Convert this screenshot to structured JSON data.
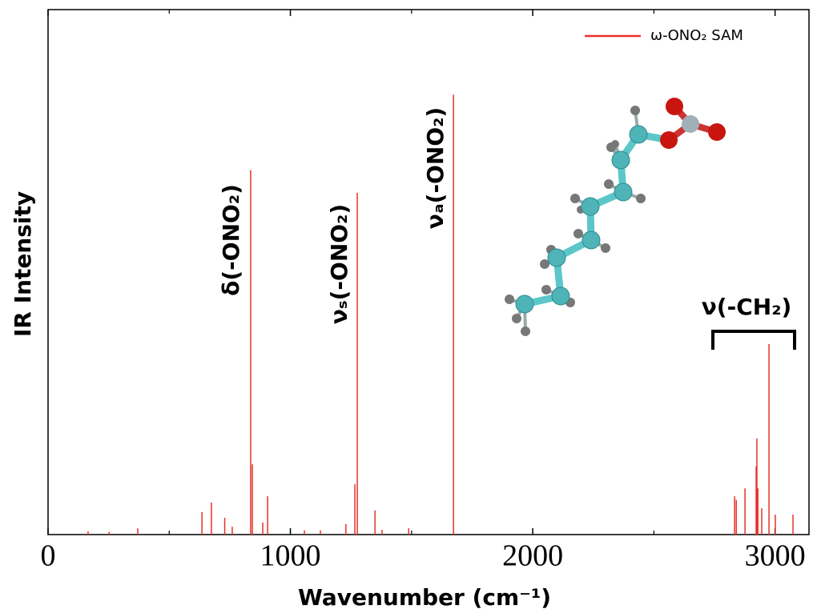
{
  "chart_data": {
    "type": "stick",
    "xlabel": "Wavenumber (cm⁻¹)",
    "ylabel": "IR Intensity",
    "xlim": [
      0,
      3140
    ],
    "ylim": [
      0,
      100
    ],
    "xticks": [
      0,
      1000,
      2000,
      3000
    ],
    "minor_xticks": [
      500,
      1500,
      2500
    ],
    "legend_position": "upper right",
    "series": [
      {
        "name": "ω-ONO₂ SAM",
        "color": "#e8302a",
        "x": [
          165,
          252,
          370,
          635,
          674,
          729,
          760,
          836,
          843,
          886,
          906,
          1058,
          1124,
          1229,
          1266,
          1276,
          1349,
          1378,
          1488,
          1673,
          2833,
          2840,
          2876,
          2922,
          2925,
          2929,
          2945,
          2975,
          3001,
          3074
        ],
        "values": [
          0.6,
          0.5,
          1.2,
          4.3,
          6.1,
          3.2,
          1.5,
          69.4,
          13.4,
          2.3,
          7.3,
          0.8,
          0.8,
          2.0,
          9.6,
          65.1,
          4.6,
          0.9,
          1.2,
          83.8,
          7.3,
          6.6,
          8.8,
          13.0,
          18.3,
          8.8,
          5.0,
          36.3,
          3.8,
          3.8
        ]
      }
    ],
    "annotations": [
      {
        "text": "δ(-ONO₂)"
      },
      {
        "text": "νₛ(-ONO₂)"
      },
      {
        "text": "νₐ(-ONO₂)"
      },
      {
        "text": "ν(-CH₂)"
      }
    ]
  }
}
